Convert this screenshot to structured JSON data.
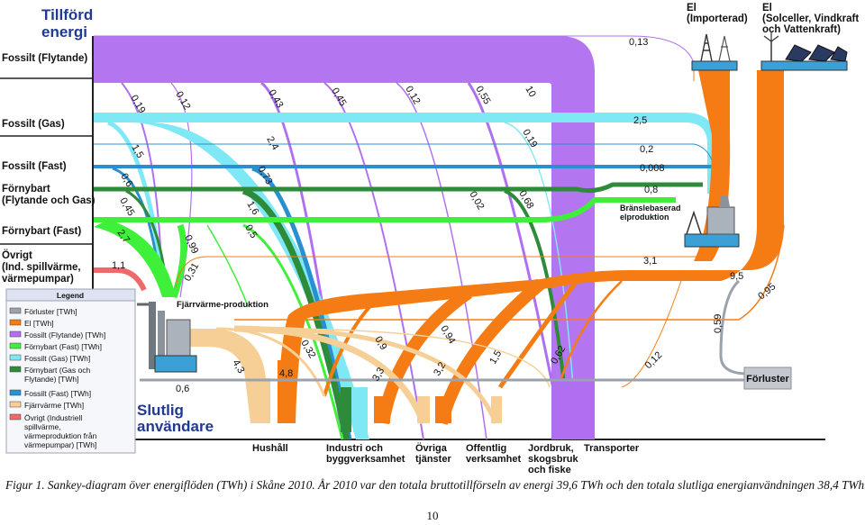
{
  "sources": {
    "title": "Tillförd energi",
    "fossilt_flytande": "Fossilt (Flytande)",
    "fossilt_gas": "Fossilt (Gas)",
    "fossilt_fast": "Fossilt (Fast)",
    "fornybart_flytande_gas": "Förnybart (Flytande och Gas)",
    "fornybart_fast": "Förnybart (Fast)",
    "ovrigt": "Övrigt (Ind. spillvärme, värmepumpar)",
    "el_importerad": "El (Importerad)",
    "el_sol": "El (Solceller, Vindkraft och Vattenkraft)"
  },
  "nodes": {
    "fjarrvarme": "Fjärrvärme-produktion",
    "bransle_el": "Bränslebaserad elproduktion",
    "forluster": "Förluster",
    "slutlig": "Slutlig användare"
  },
  "destinations": {
    "hushall": "Hushåll",
    "industri": "Industri och byggverksamhet",
    "ovriga": "Övriga tjänster",
    "offentlig": "Offentlig verksamhet",
    "jordbruk": "Jordbruk, skogsbruk och fiske",
    "transporter": "Transporter"
  },
  "flow_values": {
    "v013": "0,13",
    "v019a": "0,19",
    "v012a": "0,12",
    "v043": "0,43",
    "v045": "0,45",
    "v012b": "0,12",
    "v055": "0,55",
    "v10": "10",
    "v25": "2,5",
    "v15": "1,5",
    "v24": "2,4",
    "v019b": "0,19",
    "v02a": "0,2",
    "v0008": "0,008",
    "v06a": "0,6",
    "v073": "0,73",
    "v08": "0,8",
    "v16": "1,6",
    "v002": "0,02",
    "v068": "0,68",
    "v045b": "0,45",
    "v27": "2,7",
    "v099": "0,99",
    "v05": "0,5",
    "v31": "3,1",
    "v11": "1,1",
    "v031": "0,31",
    "v95": "9,5",
    "v095": "0,95",
    "v032": "0,32",
    "v09": "0,9",
    "v094": "0,94",
    "v059": "0,59",
    "v43": "4,3",
    "v48": "4,8",
    "v33": "3,3",
    "v32": "3,2",
    "v15b": "1,5",
    "v062": "0,62",
    "v012c": "0,12",
    "v06b": "0,6"
  },
  "legend": {
    "title": "Legend",
    "items": [
      {
        "label": "Förluster [TWh]",
        "color": "#9aa3ad"
      },
      {
        "label": "El [TWh]",
        "color": "#f57c14"
      },
      {
        "label": "Fossilt (Flytande) [TWh]",
        "color": "#b06ef0"
      },
      {
        "label": "Förnybart (Fast) [TWh]",
        "color": "#3ef03a"
      },
      {
        "label": "Fossilt (Gas) [TWh]",
        "color": "#7fe8f5"
      },
      {
        "label": "Förnybart (Gas och Flytande) [TWh]",
        "color": "#2e8b3a"
      },
      {
        "label": "Fossilt (Fast) [TWh]",
        "color": "#2a8fd0"
      },
      {
        "label": "Fjärrvärme [TWh]",
        "color": "#f5cf96"
      },
      {
        "label": "Övrigt (Industriell spillvärme, värmeproduktion från värmepumpar) [TWh]",
        "color": "#ee6a6a"
      }
    ]
  },
  "colors": {
    "fossilt_flytande": "#b06ef0",
    "fossilt_gas": "#7fe8f5",
    "fossilt_fast": "#2a8fd0",
    "fornybart_gas": "#2e8b3a",
    "fornybart_fast": "#3ef03a",
    "el": "#f57c14",
    "fjarrvarme": "#f5cf96",
    "forluster": "#9aa3ad",
    "ovrigt": "#ee6a6a",
    "title_blue": "#1f3a93"
  },
  "caption": "Figur 1. Sankey-diagram över energiflöden (TWh) i Skåne 2010. År 2010 var den totala bruttotillförseln av energi 39,6 TWh och den totala slutliga energianvändningen 38,4 TWh.",
  "page_number": "10"
}
